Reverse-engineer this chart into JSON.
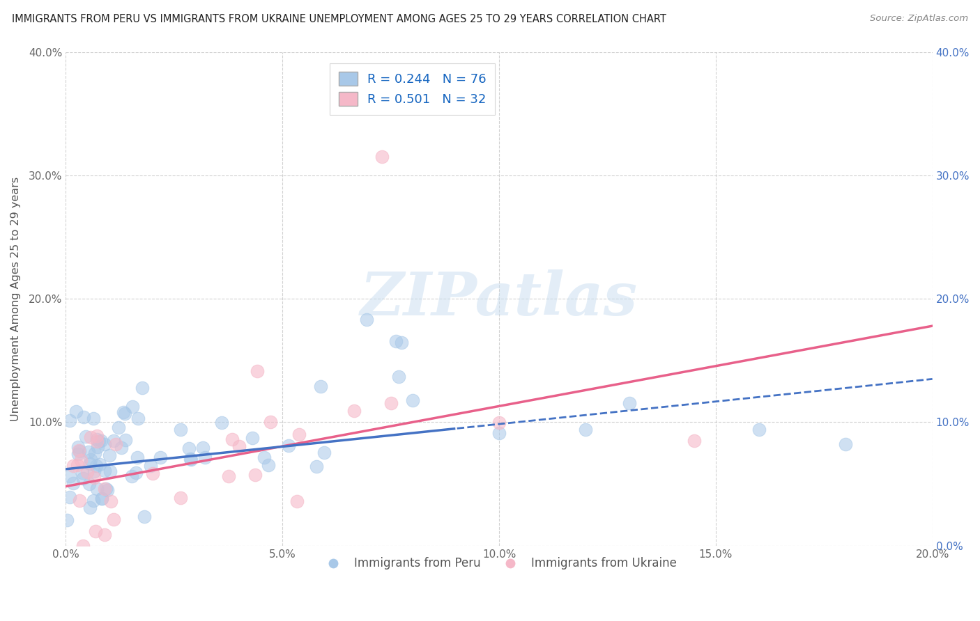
{
  "title": "IMMIGRANTS FROM PERU VS IMMIGRANTS FROM UKRAINE UNEMPLOYMENT AMONG AGES 25 TO 29 YEARS CORRELATION CHART",
  "source": "Source: ZipAtlas.com",
  "ylabel": "Unemployment Among Ages 25 to 29 years",
  "xlim": [
    0.0,
    0.2
  ],
  "ylim": [
    0.0,
    0.4
  ],
  "xticks": [
    0.0,
    0.05,
    0.1,
    0.15,
    0.2
  ],
  "yticks": [
    0.0,
    0.1,
    0.2,
    0.3,
    0.4
  ],
  "xticklabels": [
    "0.0%",
    "5.0%",
    "10.0%",
    "15.0%",
    "20.0%"
  ],
  "yticklabels_left": [
    "",
    "10.0%",
    "20.0%",
    "30.0%",
    "40.0%"
  ],
  "yticklabels_right": [
    "0.0%",
    "10.0%",
    "20.0%",
    "30.0%",
    "40.0%"
  ],
  "legend_labels": [
    "Immigrants from Peru",
    "Immigrants from Ukraine"
  ],
  "peru_color": "#a8c8e8",
  "ukraine_color": "#f5b8c8",
  "peru_line_color": "#4472c4",
  "ukraine_line_color": "#e8608a",
  "peru_R": 0.244,
  "peru_N": 76,
  "ukraine_R": 0.501,
  "ukraine_N": 32,
  "watermark": "ZIPatlas",
  "background_color": "#ffffff",
  "grid_color": "#cccccc",
  "peru_trend_x0": 0.0,
  "peru_trend_y0": 0.062,
  "peru_trend_x1": 0.2,
  "peru_trend_y1": 0.135,
  "ukraine_trend_x0": 0.0,
  "ukraine_trend_y0": 0.048,
  "ukraine_trend_x1": 0.2,
  "ukraine_trend_y1": 0.178
}
